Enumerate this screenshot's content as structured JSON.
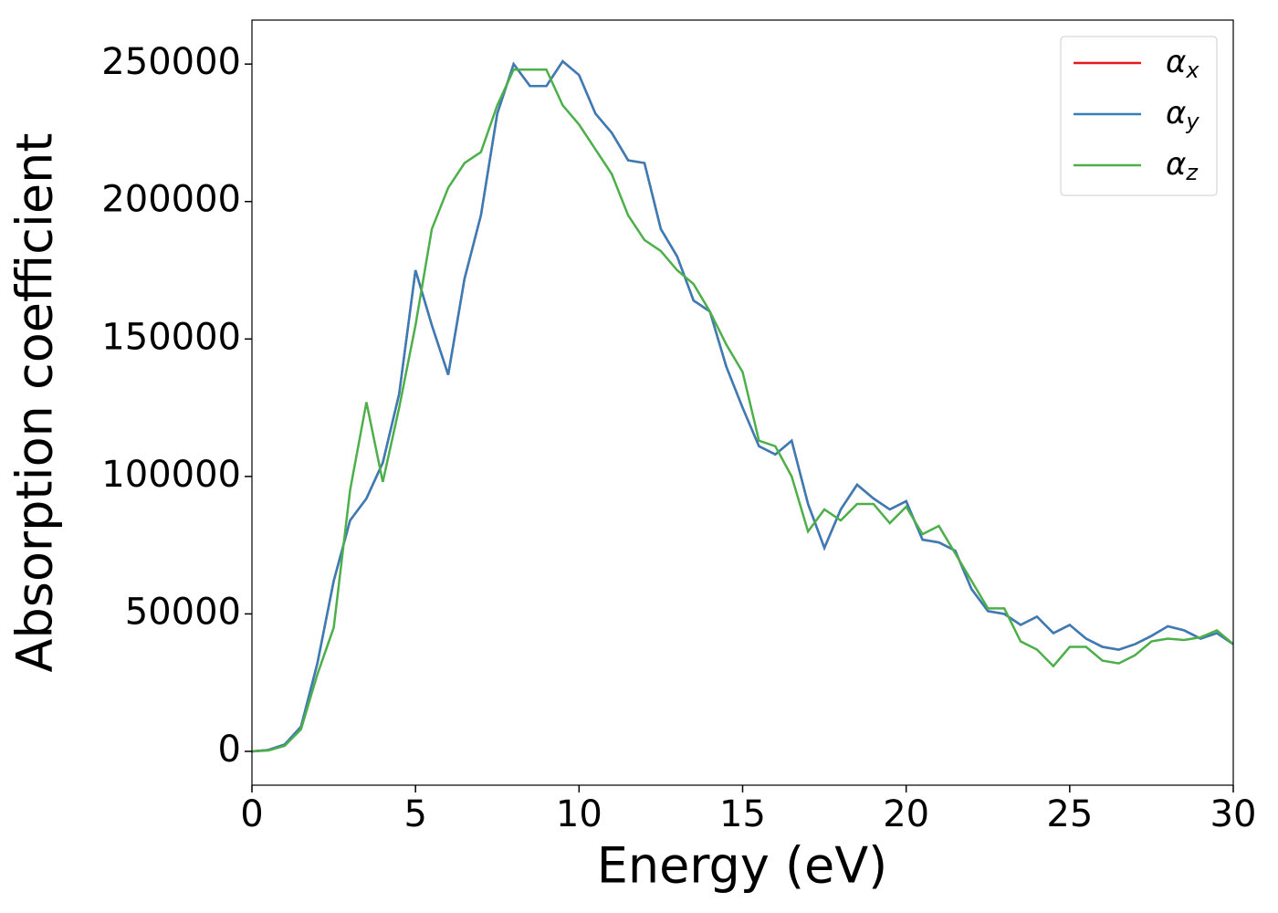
{
  "chart_data": {
    "type": "line",
    "xlabel": "Energy (eV)",
    "ylabel": "Absorption coefficient",
    "x": [
      0,
      0.5,
      1,
      1.5,
      2,
      2.5,
      3,
      3.5,
      4,
      4.5,
      5,
      5.5,
      6,
      6.5,
      7,
      7.5,
      8,
      8.5,
      9,
      9.5,
      10,
      10.5,
      11,
      11.5,
      12,
      12.5,
      13,
      13.5,
      14,
      14.5,
      15,
      15.5,
      16,
      16.5,
      17,
      17.5,
      18,
      18.5,
      19,
      19.5,
      20,
      20.5,
      21,
      21.5,
      22,
      22.5,
      23,
      23.5,
      24,
      24.5,
      25,
      25.5,
      26,
      26.5,
      27,
      27.5,
      28,
      28.5,
      29,
      29.5,
      30
    ],
    "series": [
      {
        "name": "αx",
        "color": "#e41a1c",
        "values": [
          0,
          500,
          2500,
          9000,
          32000,
          62000,
          84000,
          92000,
          105000,
          130000,
          175000,
          155000,
          137000,
          172000,
          195000,
          232000,
          250000,
          242000,
          242000,
          251000,
          246000,
          232000,
          225000,
          215000,
          214000,
          190000,
          180000,
          164000,
          160000,
          140000,
          125000,
          111000,
          108000,
          113000,
          90000,
          74000,
          88000,
          97000,
          92000,
          88000,
          91000,
          77000,
          76000,
          73000,
          59000,
          51000,
          50000,
          46000,
          49000,
          43000,
          46000,
          41000,
          38000,
          37000,
          39000,
          42000,
          45500,
          44000,
          41000,
          43000,
          39000
        ]
      },
      {
        "name": "αy",
        "color": "#377eb8",
        "values": [
          0,
          500,
          2500,
          9000,
          32000,
          62000,
          84000,
          92000,
          105000,
          130000,
          175000,
          155000,
          137000,
          172000,
          195000,
          232000,
          250000,
          242000,
          242000,
          251000,
          246000,
          232000,
          225000,
          215000,
          214000,
          190000,
          180000,
          164000,
          160000,
          140000,
          125000,
          111000,
          108000,
          113000,
          90000,
          74000,
          88000,
          97000,
          92000,
          88000,
          91000,
          77000,
          76000,
          73000,
          59000,
          51000,
          50000,
          46000,
          49000,
          43000,
          46000,
          41000,
          38000,
          37000,
          39000,
          42000,
          45500,
          44000,
          41000,
          43000,
          39000
        ]
      },
      {
        "name": "αz",
        "color": "#4daf4a",
        "values": [
          0,
          300,
          2000,
          8000,
          28000,
          45000,
          95000,
          127000,
          98000,
          125000,
          155000,
          190000,
          205000,
          214000,
          218000,
          235000,
          248000,
          248000,
          248000,
          235000,
          228000,
          219000,
          210000,
          195000,
          186000,
          182000,
          175000,
          170000,
          160000,
          148000,
          138000,
          113000,
          111000,
          100000,
          80000,
          88000,
          84000,
          90000,
          90000,
          83000,
          89000,
          79000,
          82000,
          72000,
          62000,
          52000,
          52000,
          40000,
          37000,
          31000,
          38000,
          38000,
          33000,
          32000,
          35000,
          40000,
          41000,
          40500,
          41500,
          44000,
          39000
        ]
      }
    ],
    "xlim": [
      0,
      30
    ],
    "xticks": [
      0,
      5,
      10,
      15,
      20,
      25,
      30
    ],
    "ylim": [
      -12300,
      266000
    ],
    "yticks": [
      0,
      50000,
      100000,
      150000,
      200000,
      250000
    ],
    "legend": "upper right"
  }
}
